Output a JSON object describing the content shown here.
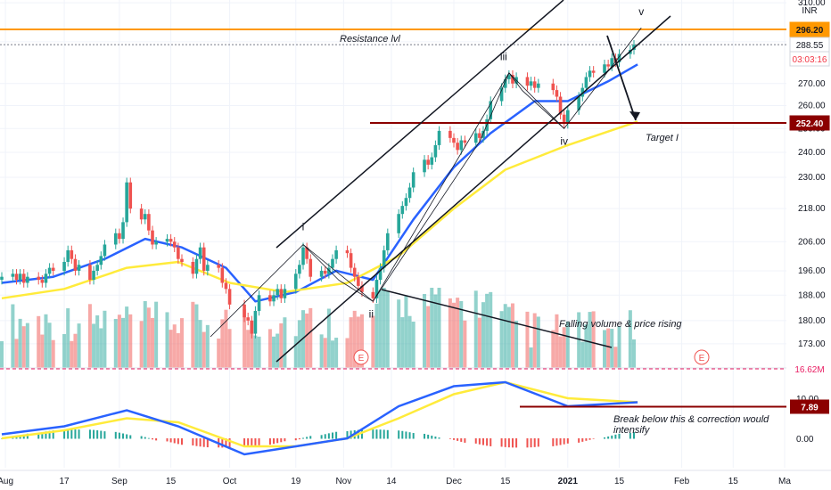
{
  "chart_data": {
    "type": "candlestick",
    "currency": "INR",
    "price_axis": {
      "scale": "log",
      "ylim": [
        170,
        311
      ],
      "ticks": [
        "310.00",
        "290.00",
        "270.00",
        "260.00",
        "250.00",
        "240.00",
        "230.00",
        "218.00",
        "206.00",
        "196.00",
        "188.00",
        "180.00",
        "173.00"
      ]
    },
    "price_tags": [
      {
        "value": "296.20",
        "color": "#ff9800",
        "text_color": "#131722"
      },
      {
        "value": "288.55",
        "color": "#ffffff",
        "text_color": "#131722"
      },
      {
        "value": "03:03:16",
        "color": "#ffffff",
        "text_color": "#f23645"
      },
      {
        "value": "252.40",
        "color": "#8b0000",
        "text_color": "#ffffff"
      }
    ],
    "horizontal_lines": [
      {
        "price": 296.2,
        "color": "#ff9800",
        "style": "solid"
      },
      {
        "price": 288.55,
        "color": "#787b86",
        "style": "dotted"
      },
      {
        "price": 252.4,
        "color": "#8b0000",
        "style": "solid"
      }
    ],
    "x_labels": [
      {
        "label": "Aug",
        "date": "2020-08-01"
      },
      {
        "label": "17",
        "date": "2020-08-17"
      },
      {
        "label": "Sep",
        "date": "2020-09-01"
      },
      {
        "label": "15",
        "date": "2020-09-15"
      },
      {
        "label": "Oct",
        "date": "2020-10-01"
      },
      {
        "label": "19",
        "date": "2020-10-19"
      },
      {
        "label": "Nov",
        "date": "2020-11-01"
      },
      {
        "label": "14",
        "date": "2020-11-14"
      },
      {
        "label": "Dec",
        "date": "2020-12-01"
      },
      {
        "label": "15",
        "date": "2020-12-15"
      },
      {
        "label": "2021",
        "date": "2021-01-01"
      },
      {
        "label": "15",
        "date": "2021-01-15"
      },
      {
        "label": "Feb",
        "date": "2021-02-01"
      },
      {
        "label": "15",
        "date": "2021-02-15"
      },
      {
        "label": "Ma",
        "date": "2021-03-01"
      }
    ],
    "ohlc_closes": [
      {
        "date": "2020-07-31",
        "close": 194
      },
      {
        "date": "2020-08-03",
        "close": 195
      },
      {
        "date": "2020-08-04",
        "close": 193
      },
      {
        "date": "2020-08-05",
        "close": 195
      },
      {
        "date": "2020-08-06",
        "close": 192
      },
      {
        "date": "2020-08-07",
        "close": 194
      },
      {
        "date": "2020-08-10",
        "close": 193
      },
      {
        "date": "2020-08-11",
        "close": 192
      },
      {
        "date": "2020-08-12",
        "close": 195
      },
      {
        "date": "2020-08-13",
        "close": 197
      },
      {
        "date": "2020-08-14",
        "close": 196
      },
      {
        "date": "2020-08-17",
        "close": 199
      },
      {
        "date": "2020-08-18",
        "close": 203
      },
      {
        "date": "2020-08-19",
        "close": 200
      },
      {
        "date": "2020-08-20",
        "close": 196
      },
      {
        "date": "2020-08-21",
        "close": 198
      },
      {
        "date": "2020-08-24",
        "close": 193
      },
      {
        "date": "2020-08-25",
        "close": 196
      },
      {
        "date": "2020-08-26",
        "close": 198
      },
      {
        "date": "2020-08-27",
        "close": 201
      },
      {
        "date": "2020-08-28",
        "close": 205
      },
      {
        "date": "2020-08-31",
        "close": 209
      },
      {
        "date": "2020-09-01",
        "close": 207
      },
      {
        "date": "2020-09-02",
        "close": 213
      },
      {
        "date": "2020-09-03",
        "close": 228
      },
      {
        "date": "2020-09-04",
        "close": 218
      },
      {
        "date": "2020-09-07",
        "close": 214
      },
      {
        "date": "2020-09-08",
        "close": 216
      },
      {
        "date": "2020-09-09",
        "close": 210
      },
      {
        "date": "2020-09-10",
        "close": 205
      },
      {
        "date": "2020-09-11",
        "close": 206
      },
      {
        "date": "2020-09-14",
        "close": 207
      },
      {
        "date": "2020-09-15",
        "close": 206
      },
      {
        "date": "2020-09-16",
        "close": 204
      },
      {
        "date": "2020-09-17",
        "close": 200
      },
      {
        "date": "2020-09-18",
        "close": 199
      },
      {
        "date": "2020-09-21",
        "close": 195
      },
      {
        "date": "2020-09-22",
        "close": 200
      },
      {
        "date": "2020-09-23",
        "close": 204
      },
      {
        "date": "2020-09-24",
        "close": 196
      },
      {
        "date": "2020-09-25",
        "close": 198
      },
      {
        "date": "2020-09-28",
        "close": 197
      },
      {
        "date": "2020-09-29",
        "close": 192
      },
      {
        "date": "2020-09-30",
        "close": 190
      },
      {
        "date": "2020-10-01",
        "close": 185
      },
      {
        "date": "2020-10-05",
        "close": 181
      },
      {
        "date": "2020-10-06",
        "close": 180
      },
      {
        "date": "2020-10-07",
        "close": 176
      },
      {
        "date": "2020-10-08",
        "close": 183
      },
      {
        "date": "2020-10-09",
        "close": 188
      },
      {
        "date": "2020-10-12",
        "close": 186
      },
      {
        "date": "2020-10-13",
        "close": 188
      },
      {
        "date": "2020-10-14",
        "close": 190
      },
      {
        "date": "2020-10-15",
        "close": 187
      },
      {
        "date": "2020-10-16",
        "close": 190
      },
      {
        "date": "2020-10-19",
        "close": 195
      },
      {
        "date": "2020-10-20",
        "close": 198
      },
      {
        "date": "2020-10-21",
        "close": 204
      },
      {
        "date": "2020-10-22",
        "close": 200
      },
      {
        "date": "2020-10-23",
        "close": 194
      },
      {
        "date": "2020-10-26",
        "close": 196
      },
      {
        "date": "2020-10-27",
        "close": 195
      },
      {
        "date": "2020-10-28",
        "close": 197
      },
      {
        "date": "2020-10-29",
        "close": 200
      },
      {
        "date": "2020-10-30",
        "close": 203
      },
      {
        "date": "2020-11-02",
        "close": 202
      },
      {
        "date": "2020-11-03",
        "close": 197
      },
      {
        "date": "2020-11-04",
        "close": 194
      },
      {
        "date": "2020-11-05",
        "close": 191
      },
      {
        "date": "2020-11-06",
        "close": 189
      },
      {
        "date": "2020-11-09",
        "close": 187
      },
      {
        "date": "2020-11-10",
        "close": 193
      },
      {
        "date": "2020-11-11",
        "close": 197
      },
      {
        "date": "2020-11-12",
        "close": 203
      },
      {
        "date": "2020-11-13",
        "close": 209
      },
      {
        "date": "2020-11-16",
        "close": 216
      },
      {
        "date": "2020-11-17",
        "close": 219
      },
      {
        "date": "2020-11-18",
        "close": 222
      },
      {
        "date": "2020-11-19",
        "close": 226
      },
      {
        "date": "2020-11-20",
        "close": 232
      },
      {
        "date": "2020-11-23",
        "close": 237
      },
      {
        "date": "2020-11-24",
        "close": 235
      },
      {
        "date": "2020-11-25",
        "close": 238
      },
      {
        "date": "2020-11-26",
        "close": 243
      },
      {
        "date": "2020-11-27",
        "close": 249
      },
      {
        "date": "2020-11-30",
        "close": 246
      },
      {
        "date": "2020-12-01",
        "close": 244
      },
      {
        "date": "2020-12-02",
        "close": 241
      },
      {
        "date": "2020-12-03",
        "close": 245
      },
      {
        "date": "2020-12-04",
        "close": 244
      },
      {
        "date": "2020-12-07",
        "close": 248
      },
      {
        "date": "2020-12-08",
        "close": 246
      },
      {
        "date": "2020-12-09",
        "close": 249
      },
      {
        "date": "2020-12-10",
        "close": 254
      },
      {
        "date": "2020-12-11",
        "close": 262
      },
      {
        "date": "2020-12-14",
        "close": 268
      },
      {
        "date": "2020-12-15",
        "close": 272
      },
      {
        "date": "2020-12-16",
        "close": 274
      },
      {
        "date": "2020-12-17",
        "close": 270
      },
      {
        "date": "2020-12-18",
        "close": 273
      },
      {
        "date": "2020-12-21",
        "close": 269
      },
      {
        "date": "2020-12-22",
        "close": 271
      },
      {
        "date": "2020-12-23",
        "close": 268
      },
      {
        "date": "2020-12-24",
        "close": 270
      },
      {
        "date": "2020-12-28",
        "close": 267
      },
      {
        "date": "2020-12-29",
        "close": 264
      },
      {
        "date": "2020-12-30",
        "close": 256
      },
      {
        "date": "2020-12-31",
        "close": 252
      },
      {
        "date": "2021-01-01",
        "close": 258
      },
      {
        "date": "2021-01-04",
        "close": 264
      },
      {
        "date": "2021-01-05",
        "close": 268
      },
      {
        "date": "2021-01-06",
        "close": 273
      },
      {
        "date": "2021-01-07",
        "close": 276
      },
      {
        "date": "2021-01-08",
        "close": 275
      },
      {
        "date": "2021-01-11",
        "close": 279
      },
      {
        "date": "2021-01-12",
        "close": 278
      },
      {
        "date": "2021-01-13",
        "close": 282
      },
      {
        "date": "2021-01-14",
        "close": 280
      },
      {
        "date": "2021-01-15",
        "close": 284
      },
      {
        "date": "2021-01-18",
        "close": 286
      },
      {
        "date": "2021-01-19",
        "close": 288.55
      }
    ],
    "moving_averages": [
      {
        "color": "#2962ff",
        "period": "short",
        "values": [
          {
            "date": "2020-07-31",
            "value": 192
          },
          {
            "date": "2020-08-14",
            "value": 194
          },
          {
            "date": "2020-08-28",
            "value": 200
          },
          {
            "date": "2020-09-08",
            "value": 207
          },
          {
            "date": "2020-09-18",
            "value": 204
          },
          {
            "date": "2020-09-30",
            "value": 197
          },
          {
            "date": "2020-10-08",
            "value": 186
          },
          {
            "date": "2020-10-19",
            "value": 189
          },
          {
            "date": "2020-10-30",
            "value": 196
          },
          {
            "date": "2020-11-09",
            "value": 193
          },
          {
            "date": "2020-11-20",
            "value": 214
          },
          {
            "date": "2020-12-01",
            "value": 234
          },
          {
            "date": "2020-12-11",
            "value": 248
          },
          {
            "date": "2020-12-23",
            "value": 262
          },
          {
            "date": "2021-01-01",
            "value": 262
          },
          {
            "date": "2021-01-12",
            "value": 271
          },
          {
            "date": "2021-01-20",
            "value": 279
          }
        ]
      },
      {
        "color": "#ffeb3b",
        "period": "long",
        "values": [
          {
            "date": "2020-07-31",
            "value": 187
          },
          {
            "date": "2020-08-17",
            "value": 190
          },
          {
            "date": "2020-09-03",
            "value": 197
          },
          {
            "date": "2020-09-17",
            "value": 199
          },
          {
            "date": "2020-10-01",
            "value": 192
          },
          {
            "date": "2020-10-16",
            "value": 189
          },
          {
            "date": "2020-11-02",
            "value": 192
          },
          {
            "date": "2020-11-16",
            "value": 201
          },
          {
            "date": "2020-12-01",
            "value": 218
          },
          {
            "date": "2020-12-15",
            "value": 233
          },
          {
            "date": "2021-01-01",
            "value": 243
          },
          {
            "date": "2021-01-20",
            "value": 253
          }
        ]
      }
    ],
    "volume": {
      "value_label": "16.62M",
      "bars_trend": "falling"
    },
    "oscillator": {
      "ticks": [
        "10.00",
        "0.00"
      ],
      "level_tag": "7.89",
      "level_value": 7.89,
      "ylim": [
        -10,
        20
      ],
      "line1": [
        {
          "date": "2020-07-31",
          "value": 1
        },
        {
          "date": "2020-08-17",
          "value": 3
        },
        {
          "date": "2020-09-03",
          "value": 7
        },
        {
          "date": "2020-09-17",
          "value": 3
        },
        {
          "date": "2020-10-05",
          "value": -4
        },
        {
          "date": "2020-10-19",
          "value": -2
        },
        {
          "date": "2020-11-02",
          "value": 0
        },
        {
          "date": "2020-11-16",
          "value": 8
        },
        {
          "date": "2020-12-01",
          "value": 13
        },
        {
          "date": "2020-12-15",
          "value": 14
        },
        {
          "date": "2021-01-01",
          "value": 8
        },
        {
          "date": "2021-01-20",
          "value": 9
        }
      ],
      "line2": [
        {
          "date": "2020-07-31",
          "value": 0
        },
        {
          "date": "2020-08-17",
          "value": 2
        },
        {
          "date": "2020-09-03",
          "value": 5
        },
        {
          "date": "2020-09-17",
          "value": 4
        },
        {
          "date": "2020-10-05",
          "value": -2
        },
        {
          "date": "2020-10-19",
          "value": -2
        },
        {
          "date": "2020-11-02",
          "value": 0
        },
        {
          "date": "2020-11-16",
          "value": 5
        },
        {
          "date": "2020-12-01",
          "value": 11
        },
        {
          "date": "2020-12-15",
          "value": 14
        },
        {
          "date": "2021-01-01",
          "value": 10
        },
        {
          "date": "2021-01-20",
          "value": 9
        }
      ]
    },
    "elliott_waves": [
      {
        "label": "i",
        "date": "2020-10-21",
        "price": 205
      },
      {
        "label": "ii",
        "date": "2020-11-09",
        "price": 186
      },
      {
        "label": "iii",
        "date": "2020-12-16",
        "price": 275
      },
      {
        "label": "iv",
        "date": "2020-12-31",
        "price": 250
      },
      {
        "label": "v",
        "date": "2021-01-21",
        "price": 297
      }
    ],
    "annotations": [
      {
        "text": "Resistance lvl"
      },
      {
        "text": "Target I"
      },
      {
        "text": "Falling volume & price rising"
      },
      {
        "text": "Break below this & correction would intensify"
      }
    ],
    "earnings_markers": [
      "E",
      "E"
    ]
  }
}
